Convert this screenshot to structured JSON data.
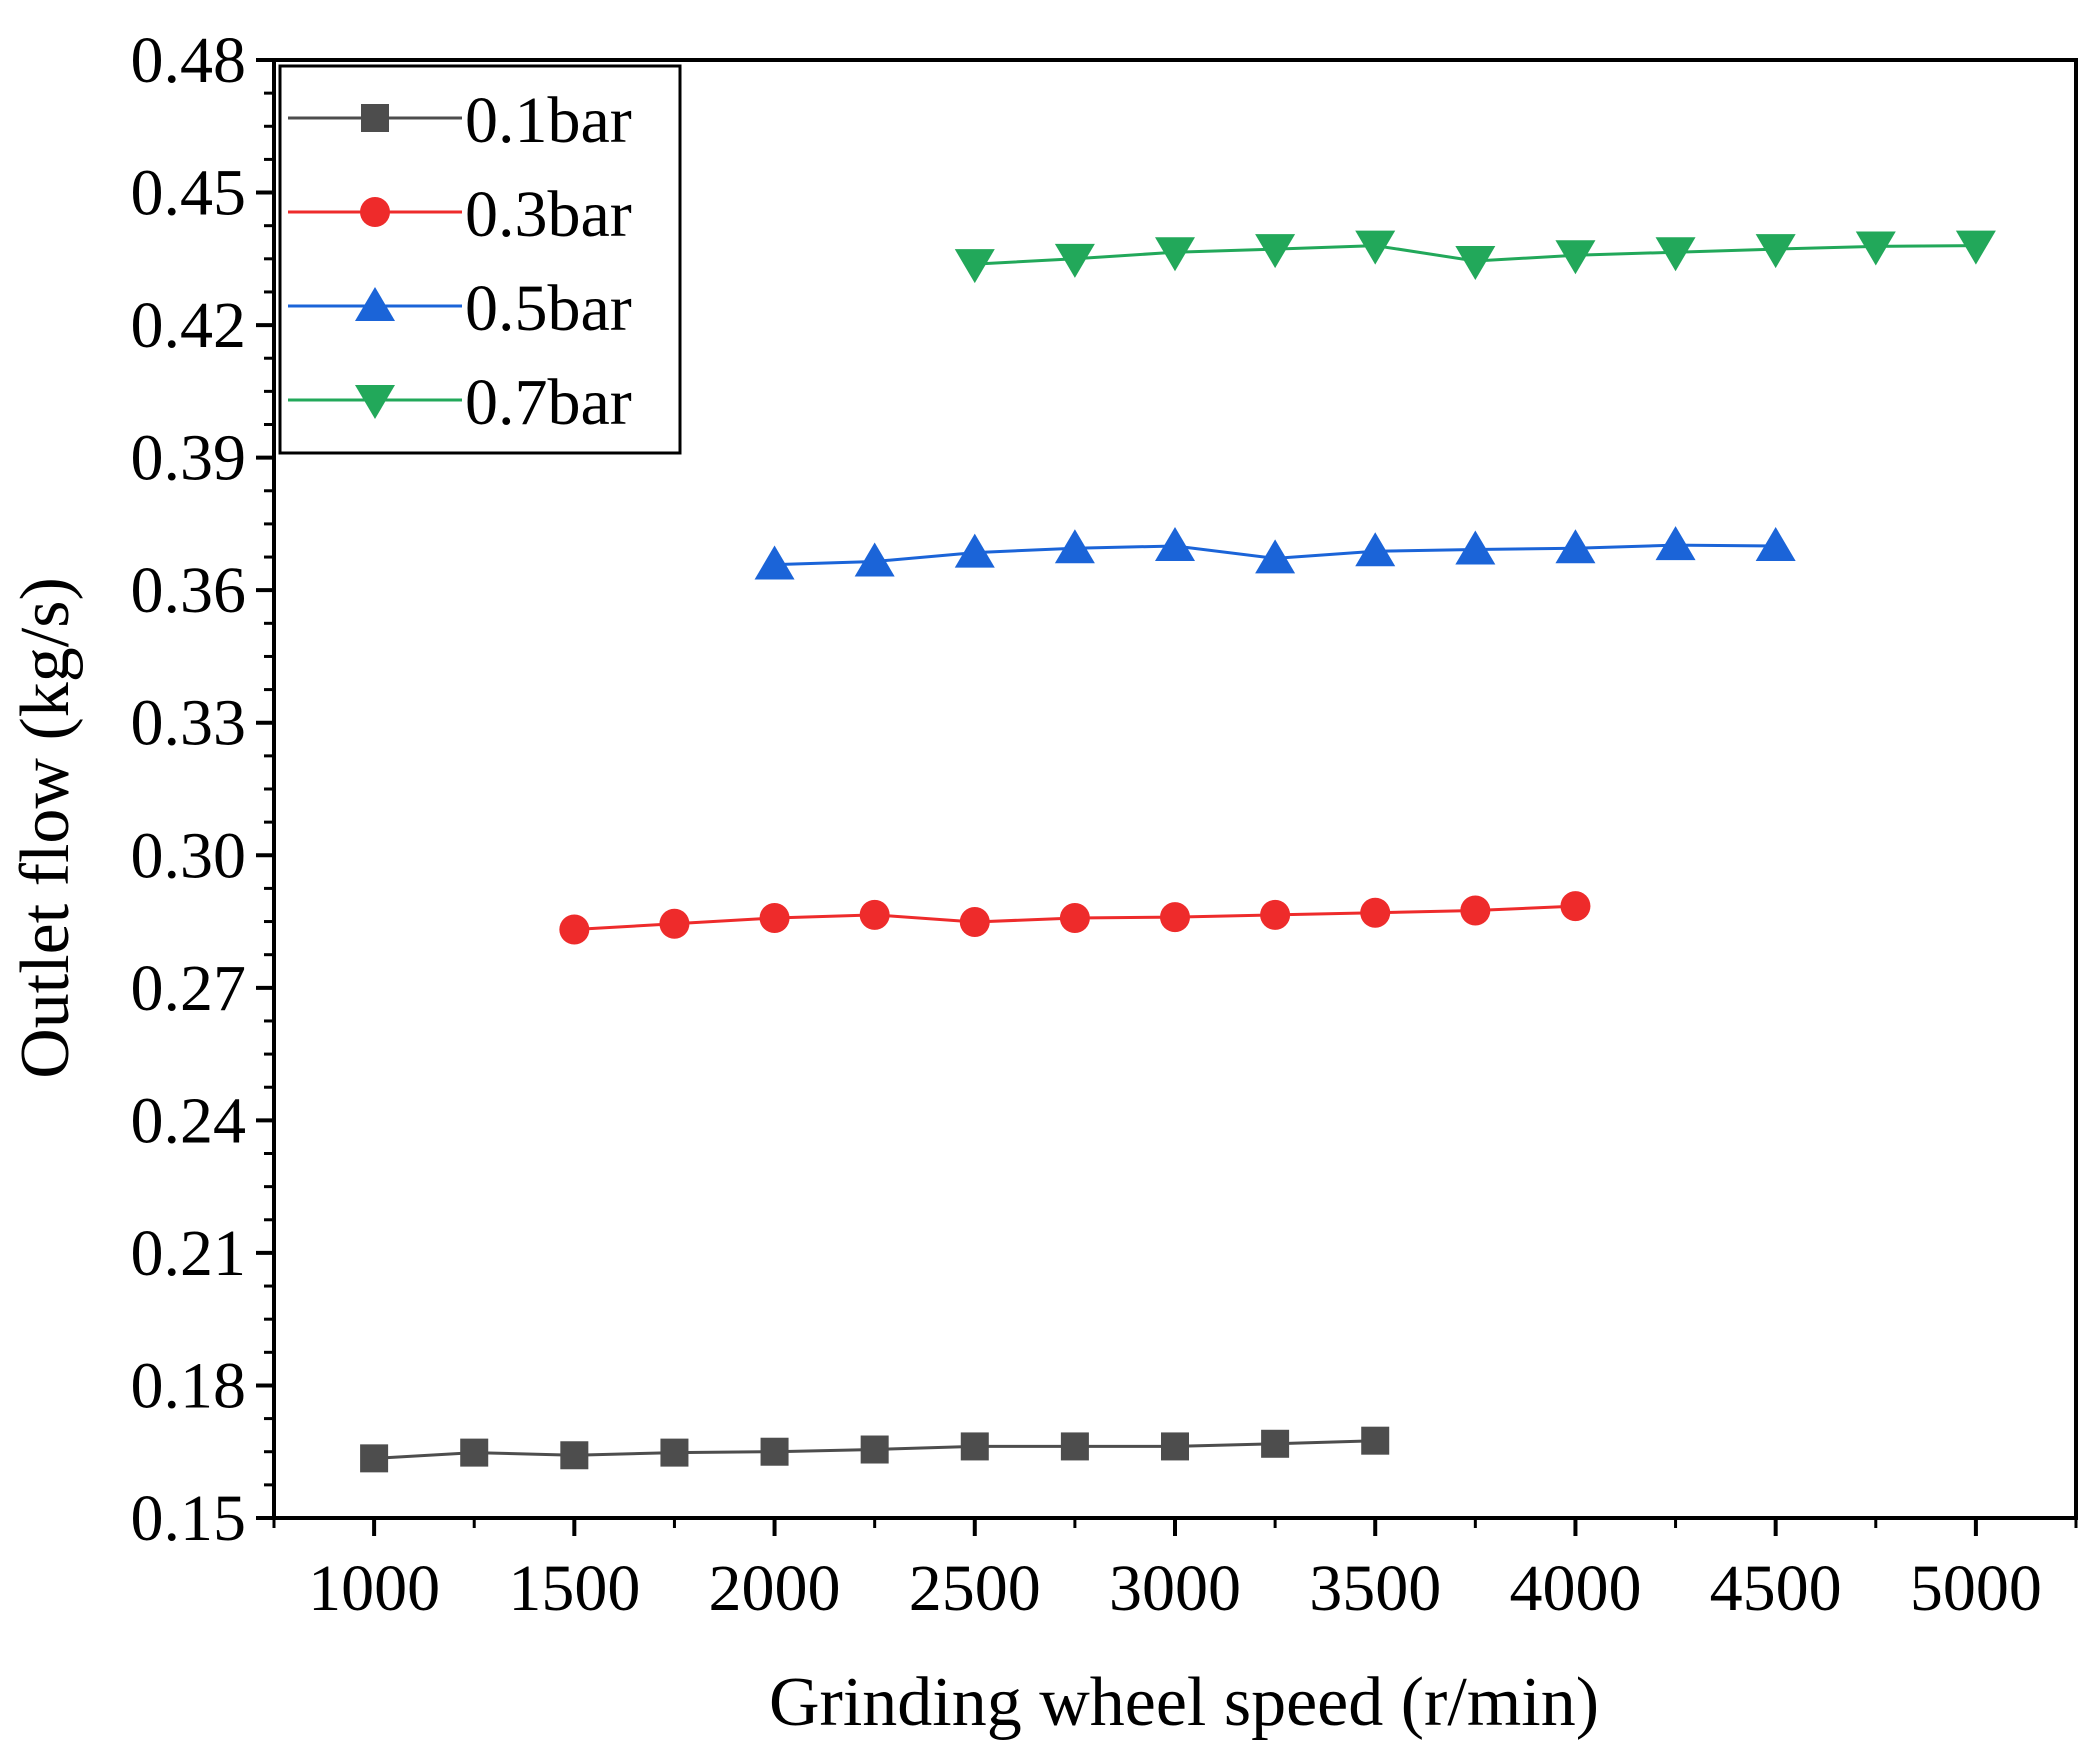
{
  "chart_data": {
    "type": "line",
    "title": "",
    "xlabel": "Grinding wheel speed (r/min)",
    "ylabel": "Outlet flow (kg/s)",
    "xlim": [
      750,
      5250
    ],
    "ylim": [
      0.15,
      0.48
    ],
    "xticks": [
      1000,
      1500,
      2000,
      2500,
      3000,
      3500,
      4000,
      4500,
      5000
    ],
    "xtick_labels": [
      "1000",
      "1500",
      "2000",
      "2500",
      "3000",
      "3500",
      "4000",
      "4500",
      "5000"
    ],
    "yticks": [
      0.15,
      0.18,
      0.21,
      0.24,
      0.27,
      0.3,
      0.33,
      0.36,
      0.39,
      0.42,
      0.45,
      0.48
    ],
    "ytick_labels": [
      "0.15",
      "0.18",
      "0.21",
      "0.24",
      "0.27",
      "0.30",
      "0.33",
      "0.36",
      "0.39",
      "0.42",
      "0.45",
      "0.48"
    ],
    "grid": false,
    "legend_position": "top-left",
    "series": [
      {
        "name": "0.1bar",
        "color": "#4d4d4d",
        "marker": "square",
        "x": [
          1000,
          1250,
          1500,
          1750,
          2000,
          2250,
          2500,
          2750,
          3000,
          3250,
          3500
        ],
        "y": [
          0.1635,
          0.1648,
          0.1642,
          0.1648,
          0.165,
          0.1655,
          0.1662,
          0.1662,
          0.1662,
          0.1668,
          0.1675
        ]
      },
      {
        "name": "0.3bar",
        "color": "#ee2b2b",
        "marker": "circle",
        "x": [
          1500,
          1750,
          2000,
          2250,
          2500,
          2750,
          3000,
          3250,
          3500,
          3750,
          4000
        ],
        "y": [
          0.2832,
          0.2845,
          0.2858,
          0.2865,
          0.2849,
          0.2858,
          0.286,
          0.2865,
          0.287,
          0.2875,
          0.2885
        ]
      },
      {
        "name": "0.5bar",
        "color": "#1b64d8",
        "marker": "triangle-up",
        "x": [
          2000,
          2250,
          2500,
          2750,
          3000,
          3250,
          3500,
          3750,
          4000,
          4250,
          4500
        ],
        "y": [
          0.3658,
          0.3665,
          0.3685,
          0.3695,
          0.37,
          0.3672,
          0.3688,
          0.3692,
          0.3695,
          0.3702,
          0.37
        ]
      },
      {
        "name": "0.7bar",
        "color": "#22a85a",
        "marker": "triangle-down",
        "x": [
          2500,
          2750,
          3000,
          3250,
          3500,
          3750,
          4000,
          4250,
          4500,
          4750,
          5000
        ],
        "y": [
          0.4338,
          0.435,
          0.4365,
          0.4372,
          0.438,
          0.4345,
          0.4358,
          0.4365,
          0.4372,
          0.4378,
          0.438
        ]
      }
    ]
  }
}
